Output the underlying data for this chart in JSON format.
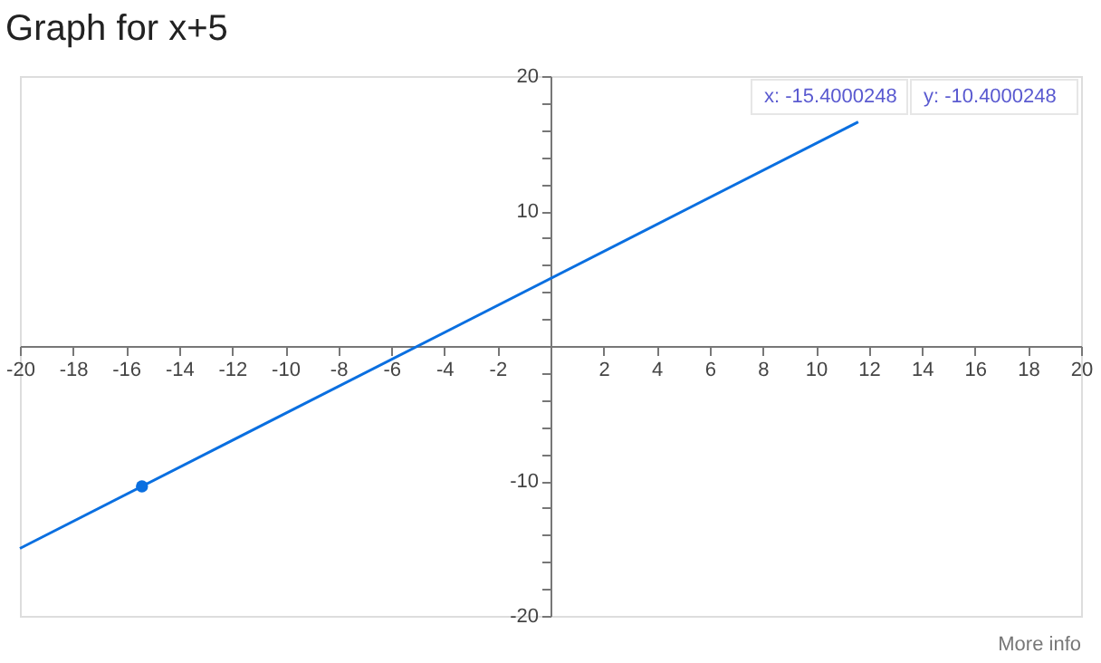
{
  "chart_data": {
    "type": "line",
    "title": "Graph for x+5",
    "series": [
      {
        "color": "#0a6fe0",
        "x": [
          -20,
          11.6
        ],
        "values": [
          -15,
          16.6
        ],
        "marker": "none"
      },
      {
        "type": "scatter",
        "color": "#0a6fe0",
        "x": [
          -15.4
        ],
        "values": [
          -10.4
        ],
        "marker": "circle"
      }
    ],
    "xlim": [
      -20,
      20
    ],
    "ylim": [
      -20,
      20
    ],
    "xticks": [
      -20,
      -18,
      -16,
      -14,
      -12,
      -10,
      -8,
      -6,
      -4,
      -2,
      2,
      4,
      6,
      8,
      10,
      12,
      14,
      16,
      18,
      20
    ],
    "yticks": [
      -20,
      {
        "value": -18,
        "label": null
      },
      {
        "value": -16,
        "label": null
      },
      {
        "value": -14,
        "label": null
      },
      {
        "value": -12,
        "label": null
      },
      -10,
      {
        "value": -8,
        "label": null
      },
      {
        "value": -6,
        "label": null
      },
      {
        "value": -4,
        "label": null
      },
      {
        "value": -2,
        "label": null
      },
      {
        "value": 0,
        "label": null
      },
      {
        "value": 2,
        "label": null
      },
      {
        "value": 4,
        "label": null
      },
      {
        "value": 6,
        "label": null
      },
      {
        "value": 8,
        "label": null
      },
      10,
      {
        "value": 12,
        "label": null
      },
      {
        "value": 14,
        "label": null
      },
      {
        "value": 16,
        "label": null
      },
      {
        "value": 18,
        "label": null
      },
      20
    ],
    "grid": false,
    "annotations": [
      "x: -15.4000248",
      "y: -10.4000248",
      "More info"
    ]
  }
}
